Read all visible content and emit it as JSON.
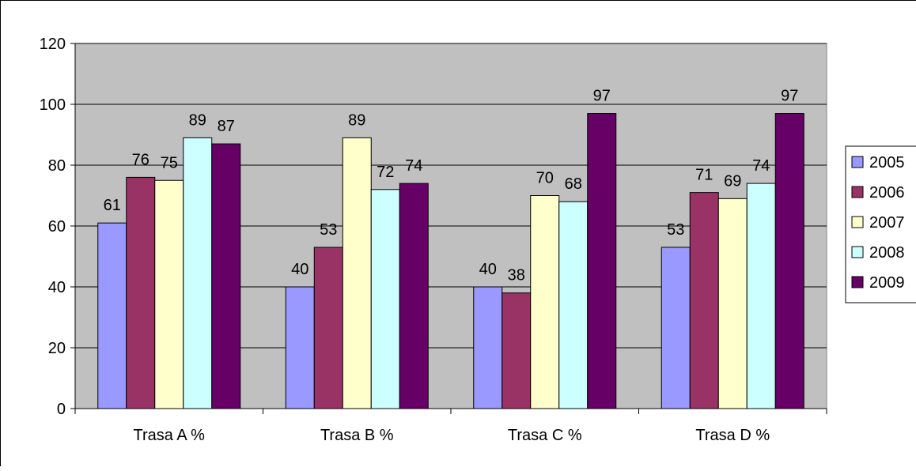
{
  "chart_data": {
    "type": "bar",
    "categories": [
      "Trasa A %",
      "Trasa B %",
      "Trasa C %",
      "Trasa D %"
    ],
    "series": [
      {
        "name": "2005",
        "color": "#9999ff",
        "values": [
          61,
          40,
          40,
          53
        ]
      },
      {
        "name": "2006",
        "color": "#993366",
        "values": [
          76,
          53,
          38,
          71
        ]
      },
      {
        "name": "2007",
        "color": "#ffffcc",
        "values": [
          75,
          89,
          70,
          69
        ]
      },
      {
        "name": "2008",
        "color": "#ccffff",
        "values": [
          89,
          72,
          68,
          74
        ]
      },
      {
        "name": "2009",
        "color": "#660066",
        "values": [
          87,
          74,
          97,
          97
        ]
      }
    ],
    "ylim": [
      0,
      120
    ],
    "yticks": [
      0,
      20,
      40,
      60,
      80,
      100,
      120
    ],
    "gridlines": true,
    "plot_background": "#c0c0c0",
    "data_labels": true,
    "legend_position": "right"
  }
}
